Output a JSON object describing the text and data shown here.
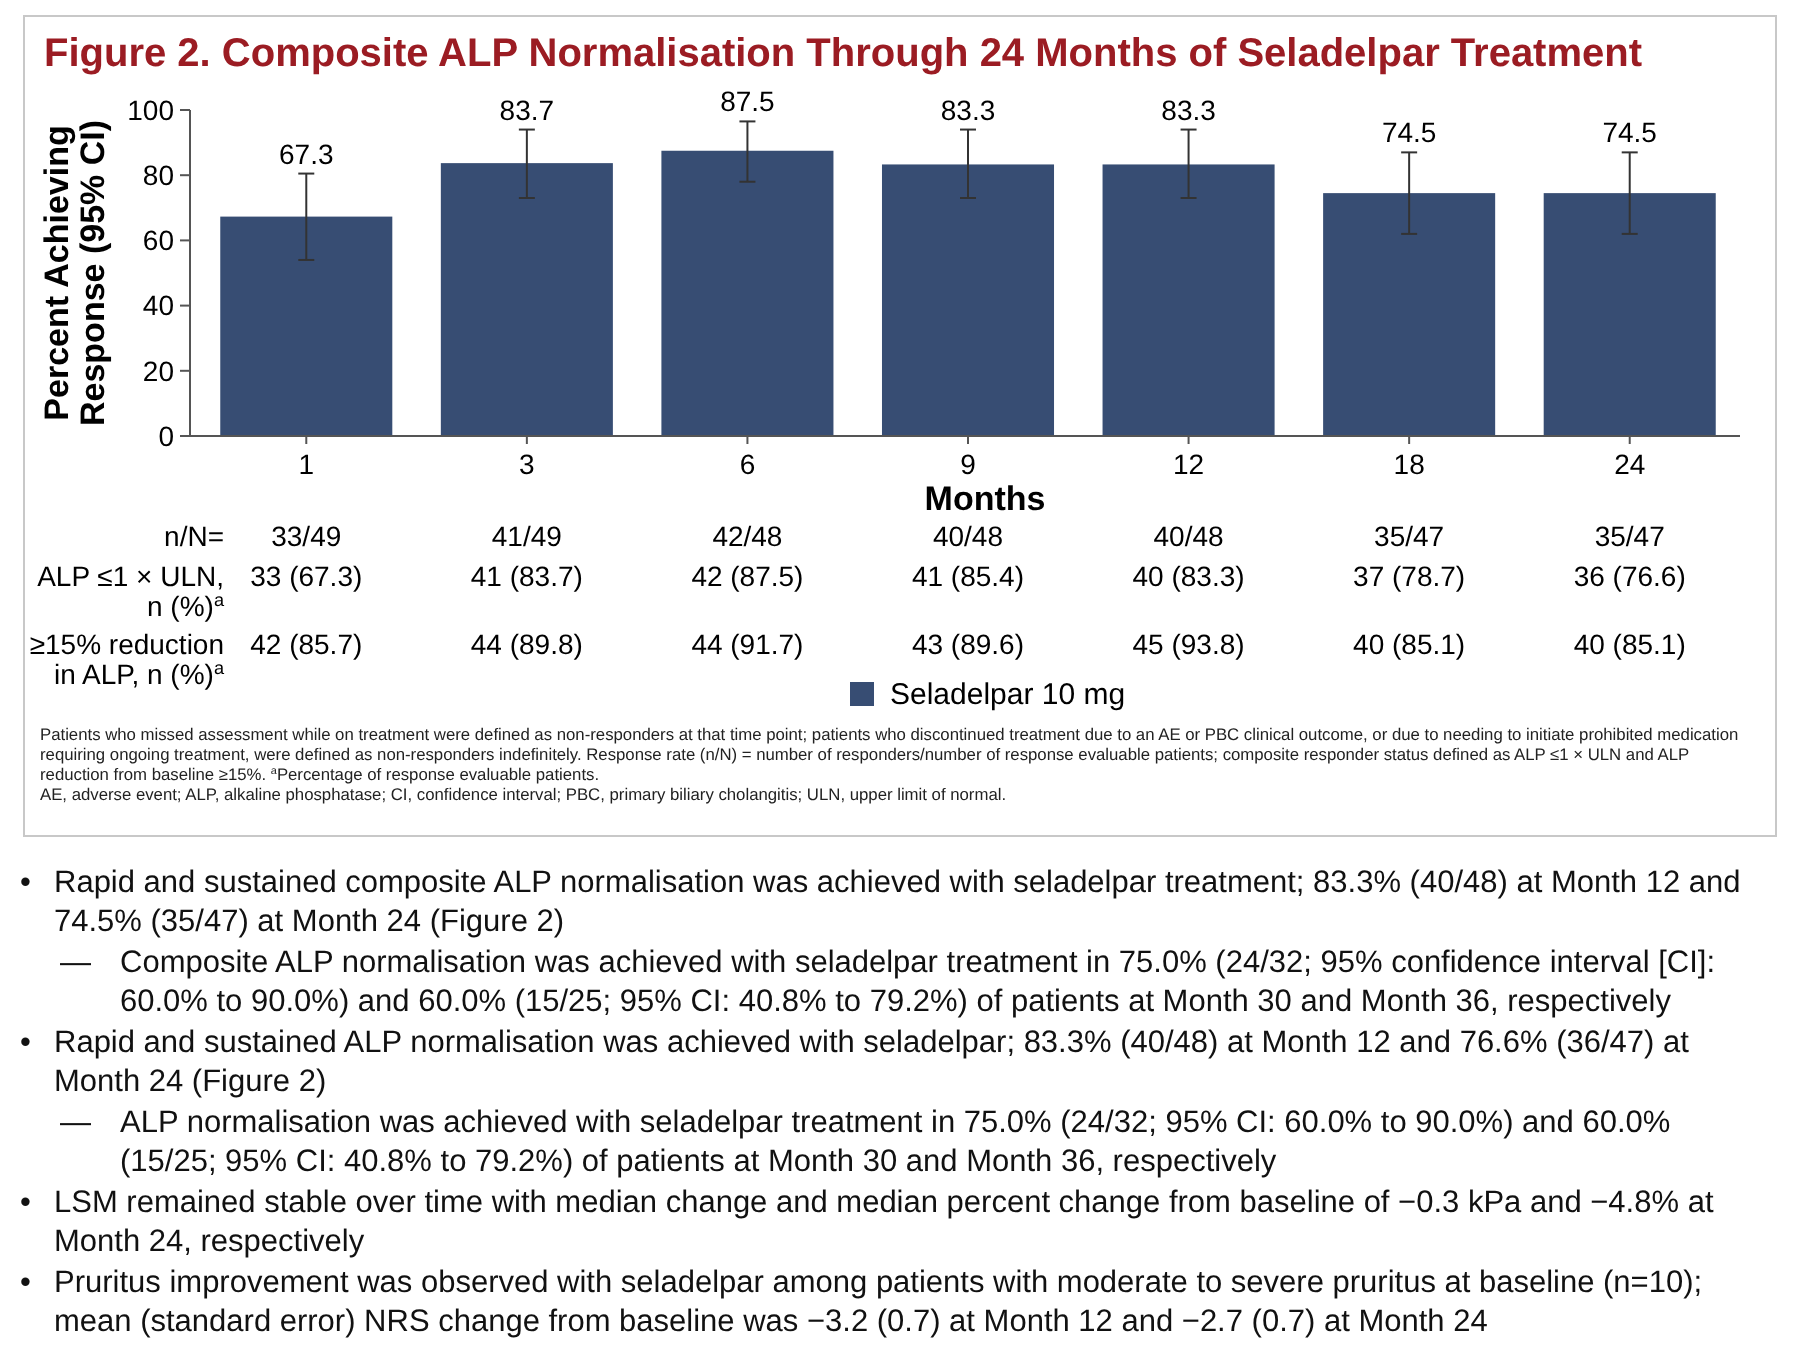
{
  "chart_data": {
    "type": "bar",
    "title": "Figure 2. Composite ALP Normalisation Through 24 Months of Seladelpar Treatment",
    "xlabel": "Months",
    "ylabel": "Percent Achieving Response (95% CI)",
    "categories": [
      "1",
      "3",
      "6",
      "9",
      "12",
      "18",
      "24"
    ],
    "series": [
      {
        "name": "Seladelpar 10 mg",
        "color": "#374d73",
        "values": [
          67.3,
          83.7,
          87.5,
          83.3,
          83.3,
          74.5,
          74.5
        ],
        "errors": [
          [
            54,
            80.5
          ],
          [
            73,
            94
          ],
          [
            78,
            96.5
          ],
          [
            73,
            94
          ],
          [
            73,
            94
          ],
          [
            62,
            87
          ],
          [
            62,
            87
          ]
        ]
      }
    ],
    "data_labels": true,
    "ylim": [
      0,
      100
    ],
    "yticks": [
      0,
      20,
      40,
      60,
      80,
      100
    ],
    "grid": false,
    "legend": "bottom",
    "annotations": [
      "n/N=",
      "33/49",
      "41/49",
      "42/48",
      "40/48",
      "40/48",
      "35/47",
      "35/47",
      "ALP ≤1 × ULN, n (%)$^{a}$",
      "33 (67.3)",
      "41 (83.7)",
      "42 (87.5)",
      "41 (85.4)",
      "40 (83.3)",
      "37 (78.7)",
      "36 (76.6)",
      "≥15% reduction in ALP, n (%)$^{a}$",
      "42 (85.7)",
      "44 (89.8)",
      "44 (91.7)",
      "43 (89.6)",
      "45 (93.8)",
      "40 (85.1)",
      "40 (85.1)",
      "Patients who missed assessment while on treatment were defined as non-responders at that time point; patients who discontinued treatment due to an AE or PBC clinical outcome, or due to needing to initiate prohibited medication requiring ongoing treatment, were defined as non-responders indefinitely. Response rate (n/N) = number of responders/number of response evaluable patients; composite responder status defined as ALP ≤1 × ULN and ALP reduction from baseline ≥15%. $^{a}$Percentage of response evaluable patients.",
      "AE, adverse event; ALP, alkaline phosphatase; CI, confidence interval; PBC, primary biliary cholangitis; ULN, upper limit of normal.",
      "• Rapid and sustained composite ALP normalisation was achieved with seladelpar treatment; 83.3% (40/48) at Month 12 and 74.5% (35/47) at Month 24 (Figure 2)",
      "— Composite ALP normalisation was achieved with seladelpar treatment in 75.0% (24/32; 95% confidence interval [CI]: 60.0% to 90.0%) and 60.0% (15/25; 95% CI: 40.8% to 79.2%) of patients at Month 30 and Month 36, respectively",
      "• Rapid and sustained ALP normalisation was achieved with seladelpar; 83.3% (40/48) at Month 12 and 76.6% (36/47) at Month 24 (Figure 2)",
      "— ALP normalisation was achieved with seladelpar treatment in 75.0% (24/32; 95% CI: 60.0% to 90.0%) and 60.0% (15/25; 95% CI: 40.8% to 79.2%) of patients at Month 30 and Month 36, respectively",
      "• LSM remained stable over time with median change and median percent change from baseline of −0.3 kPa and −4.8% at Month 24, respectively",
      "• Pruritus improvement was observed with seladelpar among patients with moderate to severe pruritus at baseline (n=10); mean (standard error) NRS change from baseline was −3.2 (0.7) at Month 12 and −2.7 (0.7) at Month 24"
    ]
  }
}
